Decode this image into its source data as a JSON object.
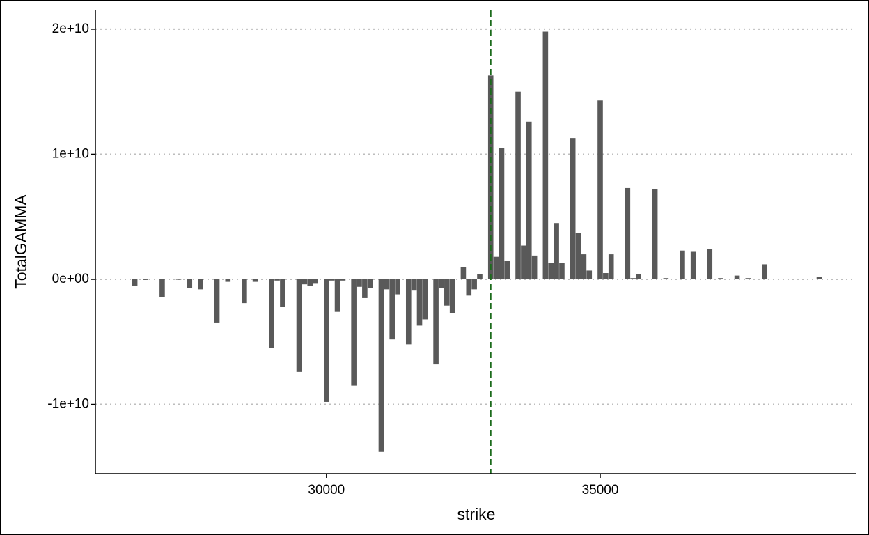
{
  "chart_data": {
    "type": "bar",
    "x_label": "strike",
    "y_label": "TotalGAMMA",
    "x": [
      26500,
      26700,
      27000,
      27300,
      27500,
      27700,
      28000,
      28200,
      28500,
      28700,
      29000,
      29100,
      29200,
      29500,
      29600,
      29700,
      29800,
      30000,
      30100,
      30200,
      30300,
      30500,
      30600,
      30700,
      30800,
      31000,
      31100,
      31200,
      31300,
      31500,
      31600,
      31700,
      31800,
      32000,
      32100,
      32200,
      32300,
      32500,
      32600,
      32700,
      32800,
      33000,
      33100,
      33200,
      33300,
      33500,
      33600,
      33700,
      33800,
      34000,
      34100,
      34200,
      34300,
      34500,
      34600,
      34700,
      34800,
      35000,
      35100,
      35200,
      35500,
      35600,
      35700,
      36000,
      36200,
      36500,
      36700,
      37000,
      37200,
      37500,
      37700,
      38000,
      39000
    ],
    "values": [
      -500000000,
      -50000000,
      -1400000000,
      -30000000,
      -700000000,
      -800000000,
      -3450000000,
      -200000000,
      -1900000000,
      -200000000,
      -5500000000,
      -100000000,
      -2200000000,
      -7400000000,
      -400000000,
      -500000000,
      -300000000,
      -9800000000,
      -100000000,
      -2600000000,
      -100000000,
      -8500000000,
      -600000000,
      -1500000000,
      -700000000,
      -13800000000,
      -800000000,
      -4800000000,
      -1200000000,
      -5200000000,
      -900000000,
      -3700000000,
      -3200000000,
      -6800000000,
      -700000000,
      -2100000000,
      -2700000000,
      1000000000,
      -1300000000,
      -800000000,
      400000000,
      16300000000,
      1800000000,
      10500000000,
      1500000000,
      15000000000,
      2700000000,
      12600000000,
      1900000000,
      19800000000,
      1300000000,
      4500000000,
      1300000000,
      11300000000,
      3700000000,
      2000000000,
      700000000,
      14300000000,
      500000000,
      2000000000,
      7300000000,
      100000000,
      400000000,
      7200000000,
      100000000,
      2300000000,
      2200000000,
      2400000000,
      100000000,
      300000000,
      100000000,
      1200000000,
      200000000
    ],
    "color": "#595959",
    "xlim": [
      25780,
      39680
    ],
    "xticks": [
      30000,
      35000
    ],
    "ylim": [
      -15540000000,
      21500000000
    ],
    "yticks": [
      {
        "value": -10000000000,
        "label": "-1e+10"
      },
      {
        "value": 0,
        "label": "0e+00"
      },
      {
        "value": 10000000000,
        "label": "1e+10"
      },
      {
        "value": 20000000000,
        "label": "2e+10"
      }
    ],
    "grid": true,
    "grid_color": "#bdbdbd",
    "vline": 33000,
    "vline_color": "#1b6b1b"
  }
}
